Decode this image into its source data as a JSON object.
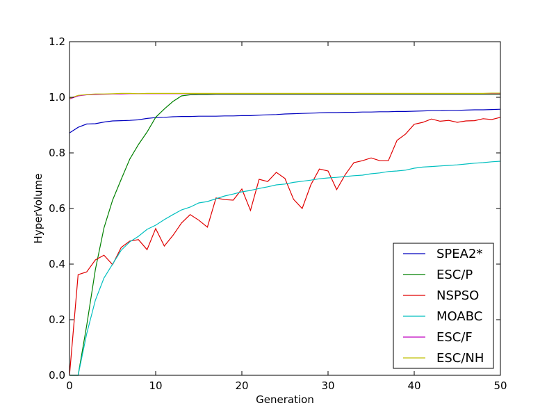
{
  "chart_data": {
    "type": "line",
    "xlabel": "Generation",
    "ylabel": "HyperVolume",
    "xlim": [
      0,
      50
    ],
    "ylim": [
      0.0,
      1.2
    ],
    "xticks": [
      0,
      10,
      20,
      30,
      40,
      50
    ],
    "yticks": [
      0.0,
      0.2,
      0.4,
      0.6,
      0.8,
      1.0,
      1.2
    ],
    "xtick_labels": [
      "0",
      "10",
      "20",
      "30",
      "40",
      "50"
    ],
    "ytick_labels": [
      "0.0",
      "0.2",
      "0.4",
      "0.6",
      "0.8",
      "1.0",
      "1.2"
    ],
    "grid": false,
    "legend_position": "lower-right",
    "x": [
      0,
      1,
      2,
      3,
      4,
      5,
      6,
      7,
      8,
      9,
      10,
      11,
      12,
      13,
      14,
      15,
      16,
      17,
      18,
      19,
      20,
      21,
      22,
      23,
      24,
      25,
      26,
      27,
      28,
      29,
      30,
      31,
      32,
      33,
      34,
      35,
      36,
      37,
      38,
      39,
      40,
      41,
      42,
      43,
      44,
      45,
      46,
      47,
      48,
      49,
      50
    ],
    "series": [
      {
        "name": "SPEA2*",
        "color": "#0000bf",
        "values": [
          0.872,
          0.892,
          0.904,
          0.905,
          0.911,
          0.915,
          0.916,
          0.917,
          0.919,
          0.924,
          0.927,
          0.928,
          0.93,
          0.931,
          0.931,
          0.932,
          0.932,
          0.932,
          0.933,
          0.933,
          0.934,
          0.934,
          0.936,
          0.937,
          0.938,
          0.94,
          0.941,
          0.942,
          0.943,
          0.944,
          0.945,
          0.945,
          0.946,
          0.946,
          0.947,
          0.947,
          0.948,
          0.948,
          0.949,
          0.949,
          0.95,
          0.951,
          0.952,
          0.952,
          0.953,
          0.953,
          0.954,
          0.955,
          0.955,
          0.956,
          0.957
        ]
      },
      {
        "name": "ESC/P",
        "color": "#008000",
        "values": [
          0.0,
          0.0,
          0.18,
          0.38,
          0.53,
          0.63,
          0.705,
          0.778,
          0.83,
          0.875,
          0.928,
          0.958,
          0.985,
          1.005,
          1.009,
          1.01,
          1.01,
          1.011,
          1.011,
          1.011,
          1.011,
          1.011,
          1.011,
          1.011,
          1.011,
          1.011,
          1.011,
          1.011,
          1.011,
          1.011,
          1.011,
          1.011,
          1.011,
          1.011,
          1.011,
          1.011,
          1.011,
          1.011,
          1.011,
          1.011,
          1.011,
          1.011,
          1.011,
          1.011,
          1.011,
          1.011,
          1.011,
          1.011,
          1.011,
          1.011,
          1.011
        ]
      },
      {
        "name": "NSPSO",
        "color": "#e00000",
        "values": [
          0.0,
          0.362,
          0.372,
          0.415,
          0.432,
          0.398,
          0.46,
          0.483,
          0.488,
          0.452,
          0.528,
          0.465,
          0.503,
          0.548,
          0.578,
          0.558,
          0.533,
          0.638,
          0.632,
          0.63,
          0.67,
          0.593,
          0.705,
          0.697,
          0.73,
          0.708,
          0.633,
          0.6,
          0.685,
          0.742,
          0.735,
          0.668,
          0.722,
          0.765,
          0.772,
          0.782,
          0.772,
          0.772,
          0.845,
          0.868,
          0.903,
          0.91,
          0.922,
          0.914,
          0.917,
          0.91,
          0.915,
          0.916,
          0.923,
          0.92,
          0.928
        ]
      },
      {
        "name": "MOABC",
        "color": "#00bfbf",
        "values": [
          0.0,
          0.0,
          0.15,
          0.27,
          0.35,
          0.4,
          0.45,
          0.48,
          0.5,
          0.525,
          0.54,
          0.56,
          0.578,
          0.595,
          0.605,
          0.62,
          0.625,
          0.635,
          0.645,
          0.652,
          0.66,
          0.665,
          0.672,
          0.678,
          0.685,
          0.688,
          0.694,
          0.698,
          0.702,
          0.707,
          0.71,
          0.712,
          0.715,
          0.718,
          0.72,
          0.725,
          0.728,
          0.733,
          0.735,
          0.738,
          0.745,
          0.749,
          0.751,
          0.753,
          0.755,
          0.757,
          0.76,
          0.763,
          0.765,
          0.768,
          0.77
        ]
      },
      {
        "name": "ESC/F",
        "color": "#bf00bf",
        "values": [
          0.994,
          1.005,
          1.009,
          1.01,
          1.011,
          1.012,
          1.012,
          1.013,
          1.013,
          1.013,
          1.013,
          1.013,
          1.013,
          1.013,
          1.013,
          1.013,
          1.013,
          1.013,
          1.013,
          1.013,
          1.013,
          1.013,
          1.013,
          1.013,
          1.013,
          1.013,
          1.013,
          1.013,
          1.013,
          1.013,
          1.013,
          1.013,
          1.013,
          1.013,
          1.013,
          1.013,
          1.013,
          1.013,
          1.013,
          1.013,
          1.013,
          1.013,
          1.013,
          1.013,
          1.013,
          1.013,
          1.013,
          1.013,
          1.013,
          1.013,
          1.013
        ]
      },
      {
        "name": "ESC/NH",
        "color": "#bfbf00",
        "values": [
          0.996,
          1.007,
          1.01,
          1.012,
          1.012,
          1.013,
          1.014,
          1.014,
          1.013,
          1.014,
          1.014,
          1.014,
          1.014,
          1.014,
          1.014,
          1.014,
          1.014,
          1.014,
          1.014,
          1.014,
          1.014,
          1.014,
          1.014,
          1.014,
          1.014,
          1.014,
          1.014,
          1.014,
          1.014,
          1.014,
          1.014,
          1.014,
          1.014,
          1.014,
          1.014,
          1.014,
          1.014,
          1.014,
          1.014,
          1.014,
          1.014,
          1.014,
          1.014,
          1.014,
          1.014,
          1.014,
          1.014,
          1.014,
          1.014,
          1.015,
          1.015
        ]
      }
    ]
  }
}
